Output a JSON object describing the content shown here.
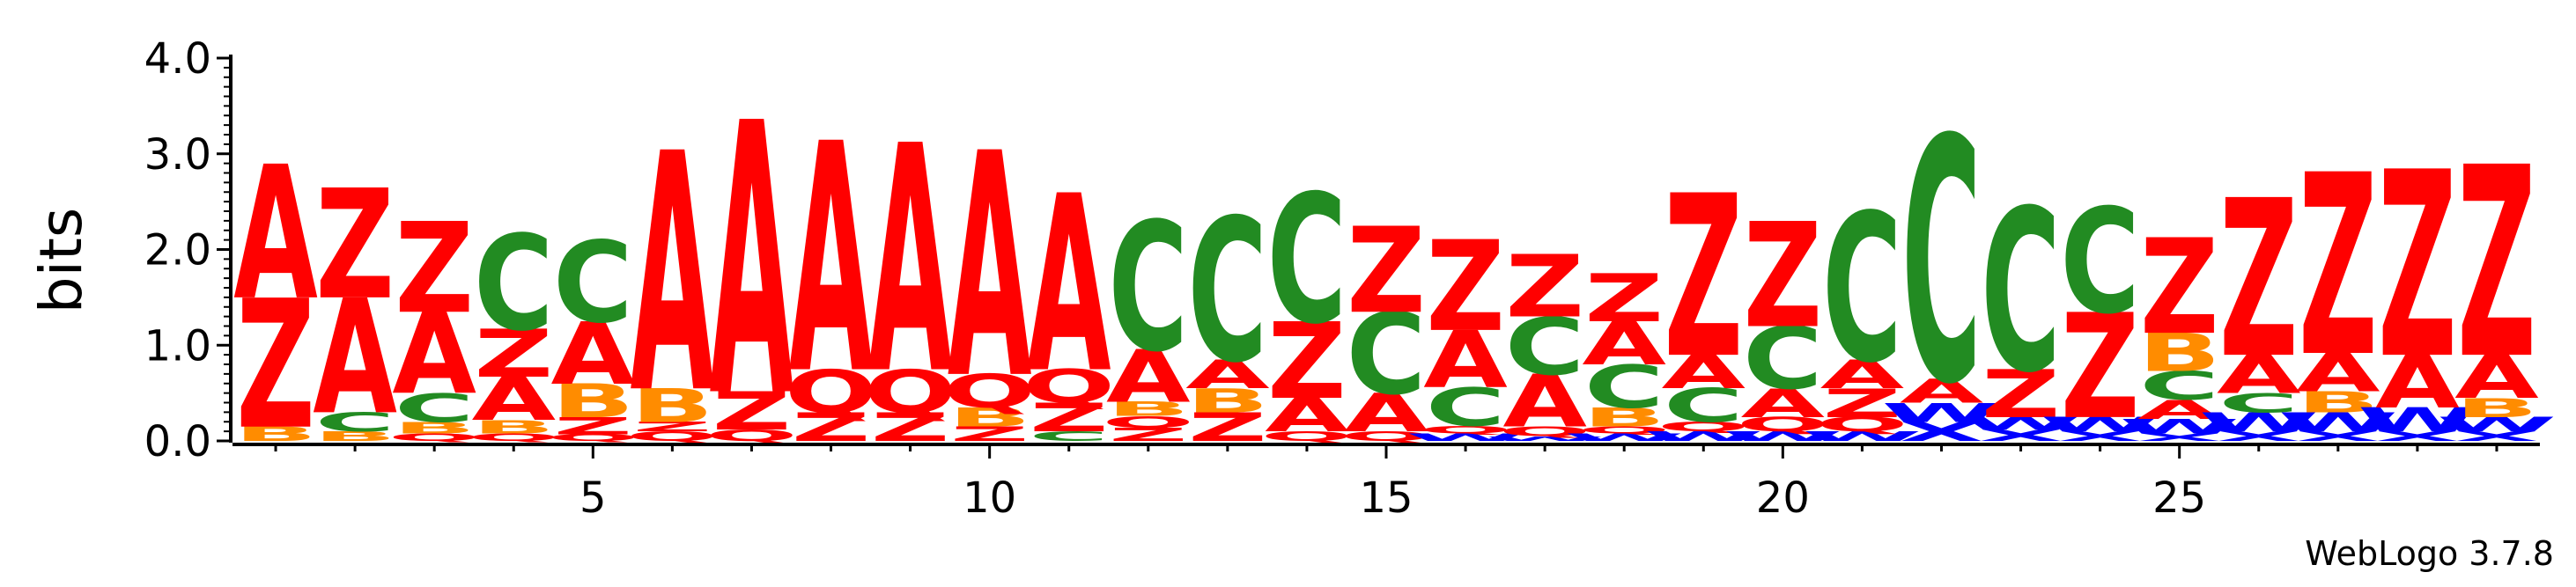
{
  "chart_data": {
    "type": "sequence-logo",
    "ylabel": "bits",
    "ylim": [
      0,
      4.0
    ],
    "yticks": [
      "0.0",
      "1.0",
      "2.0",
      "3.0",
      "4.0"
    ],
    "xticks": [
      "5",
      "10",
      "15",
      "20",
      "25"
    ],
    "positions": [
      1,
      29
    ],
    "credit": "WebLogo 3.7.8",
    "colors": {
      "A": "#ff0000",
      "Z": "#ff0000",
      "Q": "#ff0000",
      "C": "#228b22",
      "B": "#ff8c00",
      "W": "#0000ff",
      "X": "#0000ff"
    },
    "columns": [
      [
        [
          "B",
          0.15
        ],
        [
          "Z",
          1.35
        ],
        [
          "A",
          1.4
        ]
      ],
      [
        [
          "B",
          0.1
        ],
        [
          "C",
          0.2
        ],
        [
          "A",
          1.2
        ],
        [
          "Z",
          1.15
        ]
      ],
      [
        [
          "Q",
          0.08
        ],
        [
          "B",
          0.12
        ],
        [
          "C",
          0.3
        ],
        [
          "A",
          0.85
        ],
        [
          "Z",
          0.95
        ]
      ],
      [
        [
          "Q",
          0.08
        ],
        [
          "B",
          0.14
        ],
        [
          "A",
          0.45
        ],
        [
          "Z",
          0.5
        ],
        [
          "C",
          1.0
        ]
      ],
      [
        [
          "Q",
          0.07
        ],
        [
          "Z",
          0.18
        ],
        [
          "B",
          0.35
        ],
        [
          "A",
          0.65
        ],
        [
          "C",
          0.85
        ]
      ],
      [
        [
          "Q",
          0.1
        ],
        [
          "Z",
          0.1
        ],
        [
          "B",
          0.35
        ],
        [
          "A",
          2.5
        ]
      ],
      [
        [
          "Q",
          0.12
        ],
        [
          "Z",
          0.4
        ],
        [
          "A",
          2.85
        ]
      ],
      [
        [
          "Z",
          0.3
        ],
        [
          "Q",
          0.45
        ],
        [
          "A",
          2.4
        ]
      ],
      [
        [
          "Z",
          0.3
        ],
        [
          "Q",
          0.45
        ],
        [
          "A",
          2.38
        ]
      ],
      [
        [
          "Z",
          0.15
        ],
        [
          "B",
          0.2
        ],
        [
          "Q",
          0.35
        ],
        [
          "A",
          2.35
        ]
      ],
      [
        [
          "C",
          0.1
        ],
        [
          "Z",
          0.3
        ],
        [
          "Q",
          0.35
        ],
        [
          "A",
          1.85
        ]
      ],
      [
        [
          "Z",
          0.14
        ],
        [
          "Q",
          0.12
        ],
        [
          "B",
          0.15
        ],
        [
          "A",
          0.55
        ],
        [
          "C",
          1.35
        ]
      ],
      [
        [
          "Z",
          0.3
        ],
        [
          "B",
          0.25
        ],
        [
          "A",
          0.3
        ],
        [
          "C",
          1.5
        ]
      ],
      [
        [
          "Q",
          0.1
        ],
        [
          "A",
          0.35
        ],
        [
          "Z",
          0.8
        ],
        [
          "C",
          1.35
        ]
      ],
      [
        [
          "Q",
          0.1
        ],
        [
          "A",
          0.4
        ],
        [
          "C",
          0.85
        ],
        [
          "Z",
          0.9
        ]
      ],
      [
        [
          "W",
          0.08
        ],
        [
          "Q",
          0.08
        ],
        [
          "C",
          0.4
        ],
        [
          "A",
          0.6
        ],
        [
          "Z",
          0.95
        ]
      ],
      [
        [
          "W",
          0.05
        ],
        [
          "Q",
          0.1
        ],
        [
          "A",
          0.55
        ],
        [
          "C",
          0.6
        ],
        [
          "Z",
          0.65
        ]
      ],
      [
        [
          "W",
          0.08
        ],
        [
          "Q",
          0.07
        ],
        [
          "B",
          0.2
        ],
        [
          "C",
          0.45
        ],
        [
          "A",
          0.45
        ],
        [
          "Z",
          0.5
        ]
      ],
      [
        [
          "W",
          0.1
        ],
        [
          "Q",
          0.1
        ],
        [
          "C",
          0.35
        ],
        [
          "A",
          0.35
        ],
        [
          "Z",
          1.7
        ]
      ],
      [
        [
          "W",
          0.1
        ],
        [
          "Q",
          0.15
        ],
        [
          "A",
          0.3
        ],
        [
          "C",
          0.65
        ],
        [
          "Z",
          1.1
        ]
      ],
      [
        [
          "W",
          0.1
        ],
        [
          "Q",
          0.15
        ],
        [
          "Z",
          0.3
        ],
        [
          "A",
          0.3
        ],
        [
          "C",
          1.55
        ]
      ],
      [
        [
          "X",
          0.2
        ],
        [
          "W",
          0.2
        ],
        [
          "A",
          0.25
        ],
        [
          "C",
          2.55
        ]
      ],
      [
        [
          "X",
          0.12
        ],
        [
          "W",
          0.13
        ],
        [
          "Z",
          0.5
        ],
        [
          "C",
          1.7
        ]
      ],
      [
        [
          "X",
          0.1
        ],
        [
          "W",
          0.15
        ],
        [
          "Z",
          1.1
        ],
        [
          "C",
          1.1
        ]
      ],
      [
        [
          "X",
          0.08
        ],
        [
          "W",
          0.15
        ],
        [
          "A",
          0.2
        ],
        [
          "C",
          0.3
        ],
        [
          "B",
          0.4
        ],
        [
          "Z",
          1.0
        ]
      ],
      [
        [
          "X",
          0.1
        ],
        [
          "W",
          0.2
        ],
        [
          "C",
          0.2
        ],
        [
          "A",
          0.4
        ],
        [
          "Z",
          1.65
        ]
      ],
      [
        [
          "X",
          0.1
        ],
        [
          "W",
          0.2
        ],
        [
          "B",
          0.22
        ],
        [
          "A",
          0.4
        ],
        [
          "Z",
          1.9
        ]
      ],
      [
        [
          "X",
          0.1
        ],
        [
          "W",
          0.25
        ],
        [
          "A",
          0.55
        ],
        [
          "Z",
          1.95
        ]
      ],
      [
        [
          "X",
          0.1
        ],
        [
          "W",
          0.15
        ],
        [
          "B",
          0.2
        ],
        [
          "A",
          0.45
        ],
        [
          "Z",
          2.0
        ]
      ]
    ]
  }
}
